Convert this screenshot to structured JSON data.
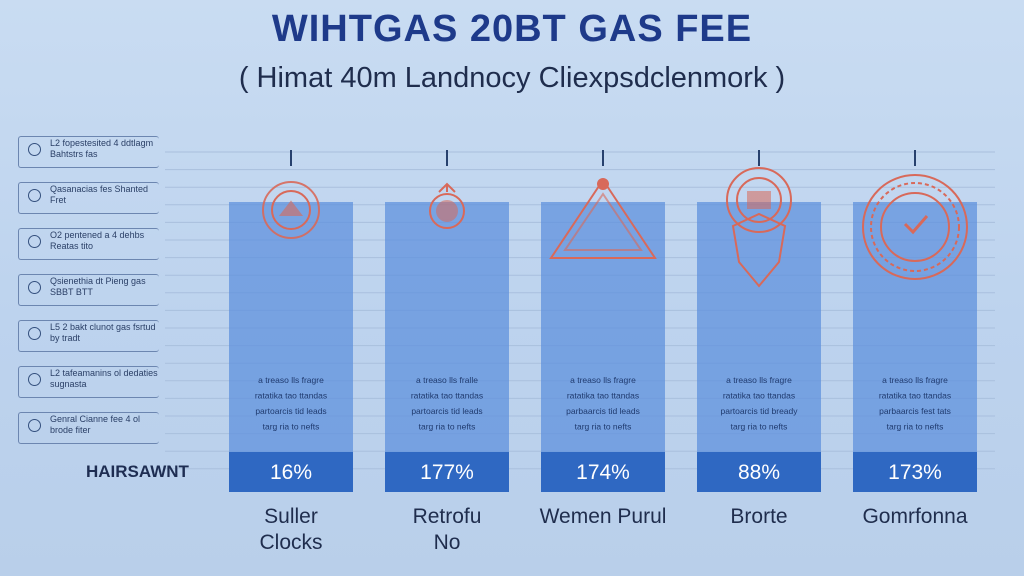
{
  "chart_data": {
    "type": "bar",
    "title": "WIHTGAS 20BT GAS FEE",
    "subtitle": "( Himat 40m Landnocy Cliexpsdclenmork )",
    "row_label": "HAIRSAWNT",
    "categories": [
      {
        "line1": "Suller",
        "line2": "Clocks"
      },
      {
        "line1": "Retrofu",
        "line2": "No"
      },
      {
        "line1": "Wemen Purul",
        "line2": ""
      },
      {
        "line1": "Brorte",
        "line2": ""
      },
      {
        "line1": "Gomrfonna",
        "line2": ""
      }
    ],
    "values": [
      "16%",
      "177%",
      "174%",
      "88%",
      "173%"
    ],
    "bar_descriptions": [
      [
        "a treaso lls fragre",
        "ratatika tao ttandas",
        "partoarcis tid leads",
        "targ ria to nefts"
      ],
      [
        "a treaso lls fralle",
        "ratatika tao ttandas",
        "partoarcis tid leads",
        "targ ria to nefts"
      ],
      [
        "a treaso lls fragre",
        "ratatika tao ttandas",
        "parbaarcis tid leads",
        "targ ria to nefts"
      ],
      [
        "a treaso lls fragre",
        "ratatika tao ttandas",
        "partoarcis tid bready",
        "targ ria to nefts"
      ],
      [
        "a treaso lls fragre",
        "ratatika tao ttandas",
        "parbaarcis fest tats",
        "targ ria to nefts"
      ]
    ],
    "icons": [
      "ringed-badge-icon",
      "ringed-pendant-icon",
      "triangle-gem-icon",
      "stacked-gem-icon",
      "ornate-check-medallion-icon"
    ],
    "legend": [
      "L2 fopestesited 4 ddtlagm Bahtstrs fas",
      "Qasanacias fes Shanted Fret",
      "O2 pentened a 4 dehbs Reatas tito",
      "Qsienethia dt Pieng gas SBBT BTT",
      "L5 2 bakt clunot gas fsrtud by tradt",
      "L2 tafeamanins ol dedaties sugnasta",
      "Genral Cianne fee 4 ol brode fiter"
    ],
    "bar_color": "#5b8fdc",
    "bar_band_color": "#2f68c2",
    "icon_color": "#d8695a",
    "grid": true
  }
}
